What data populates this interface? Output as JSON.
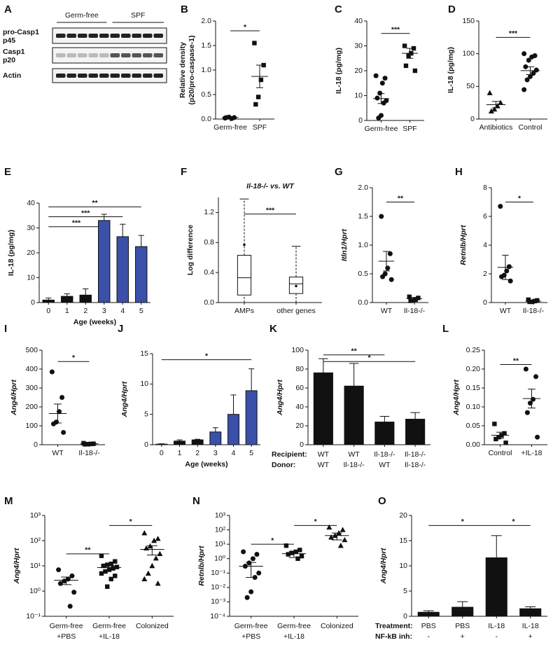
{
  "chart_data": [
    {
      "type": "blot",
      "letter": "A",
      "lane_groups": [
        "Germ-free",
        "SPF"
      ],
      "rows": [
        [
          "pro-Casp1",
          "p45"
        ],
        [
          "Casp1",
          "p20"
        ],
        [
          "Actin"
        ]
      ]
    },
    {
      "type": "dot",
      "letter": "B",
      "ylabel": [
        "Relative density",
        "(p20/pro-caspase-1)"
      ],
      "categories": [
        "Germ-free",
        "SPF"
      ],
      "markers": [
        "circle",
        "square"
      ],
      "points": [
        [
          0.02,
          0.03,
          0.01,
          0.04,
          0.03
        ],
        [
          1.55,
          1.1,
          0.8,
          0.45,
          0.3
        ]
      ],
      "means": [
        0.03,
        0.87
      ],
      "sem": [
        0.01,
        0.23
      ],
      "ylim": [
        0,
        2
      ],
      "yticks": [
        {
          "value": 0,
          "label": "0.0"
        },
        0.5,
        {
          "value": 1,
          "label": "1.0"
        },
        1.5,
        {
          "value": 2,
          "label": "2.0"
        }
      ],
      "brackets": [
        {
          "label": "*",
          "from": 0,
          "to": 1,
          "y": 1.8
        }
      ]
    },
    {
      "type": "dot",
      "letter": "C",
      "ylabel": [
        "IL-18 (pg/mg)"
      ],
      "categories": [
        "Germ-free",
        "SPF"
      ],
      "markers": [
        "circle",
        "square"
      ],
      "points": [
        [
          18,
          17,
          15,
          11,
          9,
          8,
          7,
          2,
          1
        ],
        [
          30,
          29,
          27,
          26,
          22,
          20
        ]
      ],
      "means": [
        8.8,
        27
      ],
      "sem": [
        2,
        2
      ],
      "ylim": [
        0,
        40
      ],
      "yticks": [
        0,
        10,
        20,
        30,
        40
      ],
      "brackets": [
        {
          "label": "***",
          "from": 0,
          "to": 1,
          "y": 35
        }
      ]
    },
    {
      "type": "dot",
      "letter": "D",
      "ylabel": [
        "IL-18 (pg/mg)"
      ],
      "categories": [
        "Antibiotics",
        "Control"
      ],
      "markers": [
        "triangle",
        "circle"
      ],
      "points": [
        [
          40,
          25,
          20,
          15,
          12
        ],
        [
          100,
          97,
          95,
          90,
          80,
          75,
          70,
          65,
          60,
          45
        ]
      ],
      "means": [
        22,
        74
      ],
      "sem": [
        5,
        6
      ],
      "ylim": [
        0,
        150
      ],
      "yticks": [
        0,
        50,
        100,
        150
      ],
      "brackets": [
        {
          "label": "***",
          "from": 0,
          "to": 1,
          "y": 125
        }
      ]
    },
    {
      "type": "bar",
      "letter": "E",
      "ylabel": [
        "IL-18 (pg/mg)"
      ],
      "xlabel": "Age (weeks)",
      "categories": [
        "0",
        "1",
        "2",
        "3",
        "4",
        "5"
      ],
      "values": [
        1,
        2.5,
        3,
        33,
        26.5,
        22.5
      ],
      "errors": [
        0.8,
        1,
        2.5,
        2.5,
        5,
        4.5
      ],
      "colors": [
        "#111111",
        "#111111",
        "#111111",
        "#3b50a8",
        "#3b50a8",
        "#3b50a8"
      ],
      "ylim": [
        0,
        40
      ],
      "yticks": [
        0,
        10,
        20,
        30,
        40
      ],
      "brackets": [
        {
          "label": "**",
          "from": 0,
          "to": 5,
          "y": 38.5
        },
        {
          "label": "***",
          "from": 0,
          "to": 4,
          "y": 34.5
        },
        {
          "label": "***",
          "from": 0,
          "to": 3,
          "y": 30.5
        }
      ]
    },
    {
      "type": "box",
      "letter": "F",
      "title": "Il-18-/- vs. WT",
      "ylabel": [
        "Log difference"
      ],
      "categories": [
        "AMPs",
        "other genes"
      ],
      "boxes": [
        {
          "min": 0,
          "q1": 0.1,
          "median": 0.33,
          "q3": 0.63,
          "max": 1.38,
          "mean": 0.77
        },
        {
          "min": 0,
          "q1": 0.12,
          "median": 0.25,
          "q3": 0.34,
          "max": 0.75,
          "mean": 0.22
        }
      ],
      "ylim": [
        0,
        1.4
      ],
      "yticks": [
        {
          "value": 0,
          "label": "0.0"
        },
        0.4,
        0.8,
        1.2
      ],
      "brackets": [
        {
          "label": "***",
          "from": 0,
          "to": 1,
          "y": 1.18
        }
      ]
    },
    {
      "type": "dot",
      "letter": "G",
      "ylabel": [
        "Itln1/Hprt"
      ],
      "ylabel_style": "italic",
      "categories": [
        "WT",
        "Il-18-/-"
      ],
      "markers": [
        "circle",
        "square"
      ],
      "points": [
        [
          1.5,
          0.85,
          0.6,
          0.5,
          0.45,
          0.4
        ],
        [
          0.1,
          0.08,
          0.05,
          0.04,
          0.03
        ]
      ],
      "means": [
        0.72,
        0.07
      ],
      "sem": [
        0.17,
        0.02
      ],
      "ylim": [
        0,
        2
      ],
      "yticks": [
        {
          "value": 0,
          "label": "0.0"
        },
        0.5,
        {
          "value": 1,
          "label": "1.0"
        },
        1.5,
        {
          "value": 2,
          "label": "2.0"
        }
      ],
      "brackets": [
        {
          "label": "**",
          "from": 0,
          "to": 1,
          "y": 1.75
        }
      ]
    },
    {
      "type": "dot",
      "letter": "H",
      "ylabel": [
        "Retnlb/Hprt"
      ],
      "ylabel_style": "italic",
      "categories": [
        "WT",
        "Il-18-/-"
      ],
      "markers": [
        "circle",
        "square"
      ],
      "points": [
        [
          6.7,
          2.5,
          2.2,
          1.9,
          1.8,
          1.5
        ],
        [
          0.2,
          0.15,
          0.1,
          0.05,
          0.05
        ]
      ],
      "means": [
        2.45,
        0.1
      ],
      "sem": [
        0.85,
        0.03
      ],
      "ylim": [
        0,
        8
      ],
      "yticks": [
        0,
        2,
        4,
        6,
        8
      ],
      "brackets": [
        {
          "label": "*",
          "from": 0,
          "to": 1,
          "y": 7
        }
      ]
    },
    {
      "type": "dot",
      "letter": "I",
      "ylabel": [
        "Ang4/Hprt"
      ],
      "ylabel_style": "italic",
      "categories": [
        "WT",
        "Il-18-/-"
      ],
      "markers": [
        "circle",
        "square"
      ],
      "points": [
        [
          385,
          250,
          175,
          120,
          110,
          65
        ],
        [
          8,
          5,
          4,
          3,
          2
        ]
      ],
      "means": [
        165,
        5
      ],
      "sem": [
        50,
        1
      ],
      "ylim": [
        0,
        500
      ],
      "yticks": [
        0,
        100,
        200,
        300,
        400,
        500
      ],
      "brackets": [
        {
          "label": "*",
          "from": 0,
          "to": 1,
          "y": 440
        }
      ]
    },
    {
      "type": "bar",
      "letter": "J",
      "ylabel": [
        "Ang4/Hprt"
      ],
      "ylabel_style": "italic",
      "xlabel": "Age (weeks)",
      "categories": [
        "0",
        "1",
        "2",
        "3",
        "4",
        "5"
      ],
      "values": [
        0.1,
        0.6,
        0.8,
        2.1,
        5,
        8.9
      ],
      "errors": [
        0.05,
        0.2,
        0.1,
        0.7,
        3.2,
        3.6
      ],
      "colors": [
        "#111111",
        "#111111",
        "#111111",
        "#3b50a8",
        "#3b50a8",
        "#3b50a8"
      ],
      "ylim": [
        0,
        15
      ],
      "yticks": [
        0,
        5,
        10,
        15
      ],
      "brackets": [
        {
          "label": "*",
          "from": 0,
          "to": 5,
          "y": 14
        }
      ]
    },
    {
      "type": "bar",
      "letter": "K",
      "ylabel": [
        "Ang4/Hprt"
      ],
      "ylabel_style": "italic",
      "category_rows": [
        "Recipient:",
        "Donor:"
      ],
      "categories": [
        [
          "WT",
          "WT"
        ],
        [
          "WT",
          "Il-18-/-"
        ],
        [
          "Il-18-/-",
          "WT"
        ],
        [
          "Il-18-/-",
          "Il-18-/-"
        ]
      ],
      "values": [
        76,
        62,
        24,
        27
      ],
      "errors": [
        15,
        24,
        6,
        7
      ],
      "colors": [
        "#111111",
        "#111111",
        "#111111",
        "#111111"
      ],
      "ylim": [
        0,
        100
      ],
      "yticks": [
        0,
        20,
        40,
        60,
        80,
        100
      ],
      "brackets": [
        {
          "label": "**",
          "from": 0,
          "to": 2,
          "y": 95
        },
        {
          "label": "*",
          "from": 0,
          "to": 3,
          "y": 88
        }
      ]
    },
    {
      "type": "dot",
      "letter": "L",
      "ylabel": [
        "Ang4/Hprt"
      ],
      "ylabel_style": "italic",
      "categories": [
        "Control",
        "+IL-18"
      ],
      "markers": [
        "square",
        "circle"
      ],
      "points": [
        [
          0.055,
          0.03,
          0.025,
          0.02,
          0.015,
          0.005
        ],
        [
          0.2,
          0.18,
          0.12,
          0.11,
          0.085,
          0.02
        ]
      ],
      "means": [
        0.025,
        0.122
      ],
      "sem": [
        0.008,
        0.025
      ],
      "ylim": [
        0,
        0.25
      ],
      "yticks": [
        {
          "value": 0,
          "label": "0.00"
        },
        0.05,
        {
          "value": 0.1,
          "label": "0.10"
        },
        0.15,
        {
          "value": 0.2,
          "label": "0.20"
        },
        0.25
      ],
      "brackets": [
        {
          "label": "**",
          "from": 0,
          "to": 1,
          "y": 0.212
        }
      ]
    },
    {
      "type": "dot",
      "letter": "M",
      "ylabel": [
        "Ang4/Hprt"
      ],
      "ylabel_style": "italic",
      "log": true,
      "categories": [
        [
          "Germ-free",
          "+PBS"
        ],
        [
          "Germ-free",
          "+IL-18"
        ],
        [
          "Colonized"
        ]
      ],
      "markers": [
        "circle",
        "square",
        "triangle"
      ],
      "points": [
        [
          7,
          4,
          3,
          2.5,
          2,
          0.9,
          0.25
        ],
        [
          25,
          15,
          12,
          11,
          10,
          9,
          8,
          7,
          6,
          5,
          4,
          3,
          1.5
        ],
        [
          200,
          120,
          100,
          60,
          50,
          30,
          20,
          10,
          5,
          3,
          2
        ]
      ],
      "means": [
        2.7,
        8.5,
        45
      ],
      "sem": [
        0.9,
        1.8,
        18
      ],
      "ylim": [
        0.1,
        1000
      ],
      "yticks": [
        {
          "value": 0.1,
          "label": "10⁻¹"
        },
        {
          "value": 1,
          "label": "10⁰"
        },
        {
          "value": 10,
          "label": "10¹"
        },
        {
          "value": 100,
          "label": "10²"
        },
        {
          "value": 1000,
          "label": "10³"
        }
      ],
      "brackets": [
        {
          "label": "**",
          "from": 0,
          "to": 1,
          "y": 30
        },
        {
          "label": "*",
          "from": 1,
          "to": 2,
          "y": 400
        }
      ]
    },
    {
      "type": "dot",
      "letter": "N",
      "ylabel": [
        "Retnlb/Hprt"
      ],
      "ylabel_style": "italic",
      "log": true,
      "categories": [
        [
          "Germ-free",
          "+PBS"
        ],
        [
          "Germ-free",
          "+IL-18"
        ],
        [
          "Colonized"
        ]
      ],
      "markers": [
        "circle",
        "square",
        "triangle"
      ],
      "points": [
        [
          3,
          2,
          1,
          0.5,
          0.3,
          0.1,
          0.05,
          0.005,
          0.002
        ],
        [
          8,
          4,
          3,
          2.5,
          2,
          1.5,
          1
        ],
        [
          150,
          100,
          60,
          40,
          30,
          20,
          8
        ]
      ],
      "means": [
        0.3,
        2.2,
        40
      ],
      "sem": [
        0.25,
        1,
        20
      ],
      "ylim": [
        0.0001,
        1000
      ],
      "yticks": [
        {
          "value": 0.0001,
          "label": "10⁻⁴"
        },
        {
          "value": 0.001,
          "label": "10⁻³"
        },
        {
          "value": 0.01,
          "label": "10⁻²"
        },
        {
          "value": 0.1,
          "label": "10⁻¹"
        },
        {
          "value": 1,
          "label": "10⁰"
        },
        {
          "value": 10,
          "label": "10¹"
        },
        {
          "value": 100,
          "label": "10²"
        },
        {
          "value": 1000,
          "label": "10³"
        }
      ],
      "brackets": [
        {
          "label": "*",
          "from": 0,
          "to": 1,
          "y": 10
        },
        {
          "label": "*",
          "from": 1,
          "to": 2,
          "y": 200
        }
      ]
    },
    {
      "type": "bar",
      "letter": "O",
      "ylabel": [
        "Ang4/Hprt"
      ],
      "ylabel_style": "italic",
      "category_rows": [
        "Treatment:",
        "NF-kB inh:"
      ],
      "categories": [
        [
          "PBS",
          "-"
        ],
        [
          "PBS",
          "+"
        ],
        [
          "IL-18",
          "-"
        ],
        [
          "IL-18",
          "+"
        ]
      ],
      "values": [
        0.8,
        1.8,
        11.6,
        1.5
      ],
      "errors": [
        0.3,
        1.1,
        4.4,
        0.4
      ],
      "colors": [
        "#111111",
        "#111111",
        "#111111",
        "#111111"
      ],
      "ylim": [
        0,
        20
      ],
      "yticks": [
        0,
        5,
        10,
        15,
        20
      ],
      "brackets": [
        {
          "label": "*",
          "from": 0,
          "to": 2,
          "y": 18
        },
        {
          "label": "*",
          "from": 2,
          "to": 3,
          "y": 18
        }
      ]
    }
  ]
}
